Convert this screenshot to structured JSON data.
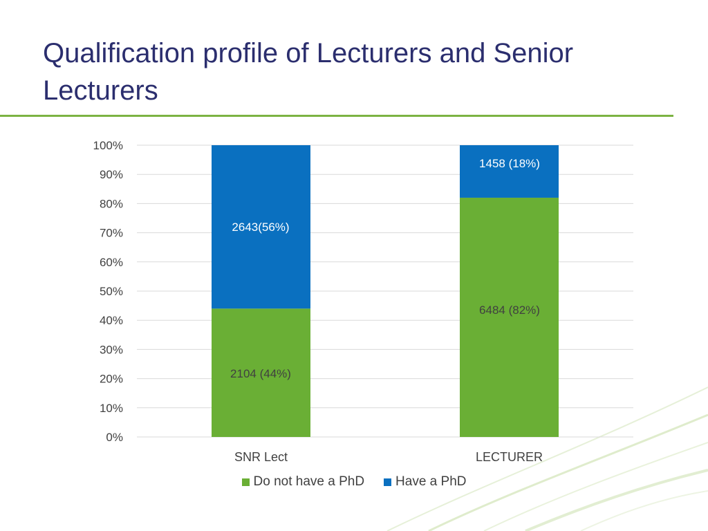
{
  "slide": {
    "title": "Qualification profile of Lecturers and Senior Lecturers"
  },
  "colors": {
    "title": "#2b2e6e",
    "rule": "#7cb342",
    "no_phd": "#6aaf35",
    "phd": "#0a70c0"
  },
  "chart_data": {
    "type": "bar",
    "stacked": "percent",
    "categories": [
      "SNR Lect",
      "LECTURER"
    ],
    "series": [
      {
        "name": "Do not have a PhD",
        "values": [
          2104,
          6484
        ],
        "percent": [
          44,
          82
        ],
        "labels": [
          "2104 (44%)",
          "6484 (82%)"
        ]
      },
      {
        "name": "Have a PhD",
        "values": [
          2643,
          1458
        ],
        "percent": [
          56,
          18
        ],
        "labels": [
          "2643(56%)",
          "1458 (18%)"
        ]
      }
    ],
    "y_ticks": [
      "0%",
      "10%",
      "20%",
      "30%",
      "40%",
      "50%",
      "60%",
      "70%",
      "80%",
      "90%",
      "100%"
    ],
    "ylim": [
      0,
      100
    ],
    "grid": true,
    "legend": "bottom"
  }
}
